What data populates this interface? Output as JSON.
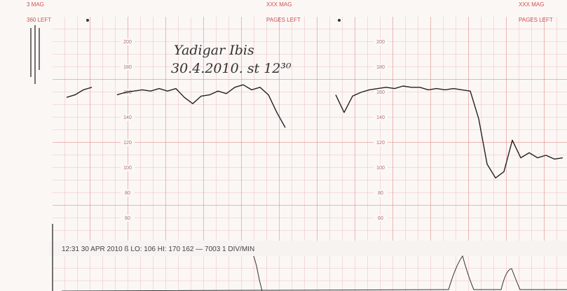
{
  "header": {
    "left": [
      "3 MAG",
      "360 LEFT"
    ],
    "center": [
      "XXX MAG",
      "PAGES LEFT"
    ],
    "right": [
      "XXX MAG",
      "PAGES LEFT"
    ]
  },
  "handwriting": [
    "Yadigar Ibis",
    "30.4.2010. st 12³⁰"
  ],
  "status_line": "12:31  30 APR 2010  ß  LO: 106  HI: 170 162  —  7003  1 DIV/MIN",
  "chart_data": {
    "type": "line",
    "ylim": [
      60,
      200
    ],
    "yticks": [
      60,
      80,
      100,
      120,
      140,
      160,
      180,
      200
    ],
    "series": [
      {
        "color": "#222222",
        "values": [
          156,
          158,
          162,
          164,
          null,
          null,
          158,
          160,
          161,
          162,
          161,
          163,
          161,
          163,
          156,
          151,
          157,
          158,
          161,
          159,
          164,
          166,
          162,
          164,
          158,
          144,
          132,
          null,
          null,
          null,
          null,
          null,
          158,
          144,
          157,
          160,
          162,
          163,
          164,
          163,
          165,
          164,
          164,
          162,
          163,
          162,
          163,
          162,
          161,
          139,
          103,
          92,
          97,
          122,
          108,
          112,
          108,
          110,
          107,
          108
        ]
      }
    ]
  }
}
